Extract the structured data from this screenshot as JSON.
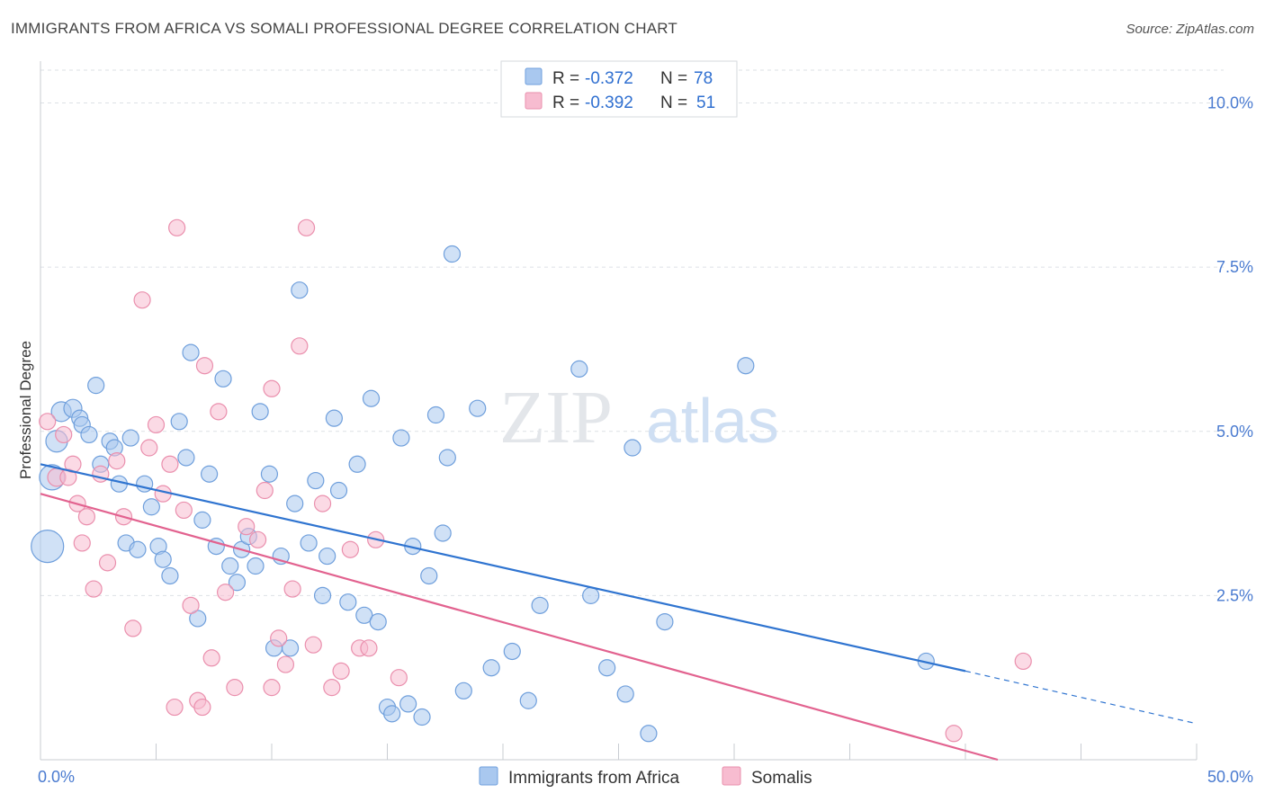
{
  "title": "IMMIGRANTS FROM AFRICA VS SOMALI PROFESSIONAL DEGREE CORRELATION CHART",
  "source": "Source: ZipAtlas.com",
  "watermark": {
    "zip": "ZIP",
    "atlas": "atlas"
  },
  "colors": {
    "blue_fill": "#a9c8ef",
    "blue_stroke": "#6f9fdc",
    "blue_line": "#2f74d0",
    "pink_fill": "#f7bcd0",
    "pink_stroke": "#ea8fad",
    "pink_line": "#e2628f",
    "grid": "#dde1e6",
    "axis_text": "#4a7bd0"
  },
  "legend": {
    "rows": [
      {
        "r_label": "R =",
        "r_value": "-0.372",
        "n_label": "N =",
        "n_value": "78",
        "color": "#a9c8ef"
      },
      {
        "r_label": "R =",
        "r_value": "-0.392",
        "n_label": "N =",
        "n_value": "51",
        "color": "#f7bcd0"
      }
    ]
  },
  "chart_data": {
    "type": "scatter",
    "xlabel": "",
    "ylabel": "Professional Degree",
    "xlim": [
      0,
      50
    ],
    "ylim": [
      0,
      10.5
    ],
    "x_tick_labels": [
      {
        "value": 0,
        "label": "0.0%"
      },
      {
        "value": 50,
        "label": "50.0%"
      }
    ],
    "y_tick_labels": [
      {
        "value": 2.5,
        "label": "2.5%"
      },
      {
        "value": 5.0,
        "label": "5.0%"
      },
      {
        "value": 7.5,
        "label": "7.5%"
      },
      {
        "value": 10.0,
        "label": "10.0%"
      }
    ],
    "grid": "horizontal-dashed",
    "legend_position": "top-center",
    "series": [
      {
        "name": "Immigrants from Africa",
        "color": "#a9c8ef",
        "trend": {
          "x0": 0,
          "y0": 4.5,
          "x1": 40,
          "y1": 1.35,
          "dashed_to": 50,
          "dashed_y": 0.55
        },
        "points": [
          [
            0.3,
            3.25,
            18
          ],
          [
            0.5,
            4.3,
            14
          ],
          [
            0.7,
            4.85,
            12
          ],
          [
            0.9,
            5.3,
            11
          ],
          [
            1.4,
            5.35,
            10
          ],
          [
            1.7,
            5.2,
            9
          ],
          [
            1.8,
            5.1,
            9
          ],
          [
            2.1,
            4.95,
            9
          ],
          [
            2.4,
            5.7,
            9
          ],
          [
            2.6,
            4.5,
            9
          ],
          [
            3.0,
            4.85,
            9
          ],
          [
            3.2,
            4.75,
            9
          ],
          [
            3.4,
            4.2,
            9
          ],
          [
            3.7,
            3.3,
            9
          ],
          [
            3.9,
            4.9,
            9
          ],
          [
            4.2,
            3.2,
            9
          ],
          [
            4.5,
            4.2,
            9
          ],
          [
            4.8,
            3.85,
            9
          ],
          [
            5.1,
            3.25,
            9
          ],
          [
            5.3,
            3.05,
            9
          ],
          [
            5.6,
            2.8,
            9
          ],
          [
            6.0,
            5.15,
            9
          ],
          [
            6.3,
            4.6,
            9
          ],
          [
            6.5,
            6.2,
            9
          ],
          [
            6.8,
            2.15,
            9
          ],
          [
            7.0,
            3.65,
            9
          ],
          [
            7.3,
            4.35,
            9
          ],
          [
            7.6,
            3.25,
            9
          ],
          [
            7.9,
            5.8,
            9
          ],
          [
            8.2,
            2.95,
            9
          ],
          [
            8.5,
            2.7,
            9
          ],
          [
            8.7,
            3.2,
            9
          ],
          [
            9.0,
            3.4,
            9
          ],
          [
            9.3,
            2.95,
            9
          ],
          [
            9.5,
            5.3,
            9
          ],
          [
            9.9,
            4.35,
            9
          ],
          [
            10.1,
            1.7,
            9
          ],
          [
            10.4,
            3.1,
            9
          ],
          [
            10.8,
            1.7,
            9
          ],
          [
            11.0,
            3.9,
            9
          ],
          [
            11.2,
            7.15,
            9
          ],
          [
            11.6,
            3.3,
            9
          ],
          [
            11.9,
            4.25,
            9
          ],
          [
            12.2,
            2.5,
            9
          ],
          [
            12.4,
            3.1,
            9
          ],
          [
            12.7,
            5.2,
            9
          ],
          [
            12.9,
            4.1,
            9
          ],
          [
            13.3,
            2.4,
            9
          ],
          [
            13.7,
            4.5,
            9
          ],
          [
            14.0,
            2.2,
            9
          ],
          [
            14.3,
            5.5,
            9
          ],
          [
            14.6,
            2.1,
            9
          ],
          [
            15.0,
            0.8,
            9
          ],
          [
            15.2,
            0.7,
            9
          ],
          [
            15.6,
            4.9,
            9
          ],
          [
            15.9,
            0.85,
            9
          ],
          [
            16.1,
            3.25,
            9
          ],
          [
            16.5,
            0.65,
            9
          ],
          [
            16.8,
            2.8,
            9
          ],
          [
            17.1,
            5.25,
            9
          ],
          [
            17.4,
            3.45,
            9
          ],
          [
            17.6,
            4.6,
            9
          ],
          [
            17.8,
            7.7,
            9
          ],
          [
            18.3,
            1.05,
            9
          ],
          [
            18.9,
            5.35,
            9
          ],
          [
            19.5,
            1.4,
            9
          ],
          [
            20.4,
            1.65,
            9
          ],
          [
            21.1,
            0.9,
            9
          ],
          [
            21.6,
            2.35,
            9
          ],
          [
            23.3,
            5.95,
            9
          ],
          [
            23.8,
            2.5,
            9
          ],
          [
            24.5,
            1.4,
            9
          ],
          [
            25.3,
            1.0,
            9
          ],
          [
            25.6,
            4.75,
            9
          ],
          [
            26.3,
            0.4,
            9
          ],
          [
            27.0,
            2.1,
            9
          ],
          [
            30.5,
            6.0,
            9
          ],
          [
            38.3,
            1.5,
            9
          ]
        ]
      },
      {
        "name": "Somalis",
        "color": "#f7bcd0",
        "trend": {
          "x0": 0,
          "y0": 4.05,
          "x1": 41.4,
          "y1": 0.0
        },
        "points": [
          [
            0.3,
            5.15,
            9
          ],
          [
            0.7,
            4.3,
            10
          ],
          [
            1.0,
            4.95,
            9
          ],
          [
            1.2,
            4.3,
            9
          ],
          [
            1.4,
            4.5,
            9
          ],
          [
            1.6,
            3.9,
            9
          ],
          [
            1.8,
            3.3,
            9
          ],
          [
            2.0,
            3.7,
            9
          ],
          [
            2.3,
            2.6,
            9
          ],
          [
            2.6,
            4.35,
            9
          ],
          [
            2.9,
            3.0,
            9
          ],
          [
            3.3,
            4.55,
            9
          ],
          [
            3.6,
            3.7,
            9
          ],
          [
            4.0,
            2.0,
            9
          ],
          [
            4.4,
            7.0,
            9
          ],
          [
            4.7,
            4.75,
            9
          ],
          [
            5.0,
            5.1,
            9
          ],
          [
            5.3,
            4.05,
            9
          ],
          [
            5.6,
            4.5,
            9
          ],
          [
            5.9,
            8.1,
            9
          ],
          [
            6.2,
            3.8,
            9
          ],
          [
            6.5,
            2.35,
            9
          ],
          [
            6.8,
            0.9,
            9
          ],
          [
            7.1,
            6.0,
            9
          ],
          [
            7.4,
            1.55,
            9
          ],
          [
            7.7,
            5.3,
            9
          ],
          [
            8.0,
            2.55,
            9
          ],
          [
            8.4,
            1.1,
            9
          ],
          [
            8.9,
            3.55,
            9
          ],
          [
            9.4,
            3.35,
            9
          ],
          [
            9.7,
            4.1,
            9
          ],
          [
            10.0,
            5.65,
            9
          ],
          [
            10.3,
            1.85,
            9
          ],
          [
            10.6,
            1.45,
            9
          ],
          [
            10.9,
            2.6,
            9
          ],
          [
            11.2,
            6.3,
            9
          ],
          [
            11.5,
            8.1,
            9
          ],
          [
            11.8,
            1.75,
            9
          ],
          [
            12.2,
            3.9,
            9
          ],
          [
            12.6,
            1.1,
            9
          ],
          [
            13.0,
            1.35,
            9
          ],
          [
            13.4,
            3.2,
            9
          ],
          [
            13.8,
            1.7,
            9
          ],
          [
            14.2,
            1.7,
            9
          ],
          [
            14.5,
            3.35,
            9
          ],
          [
            15.5,
            1.25,
            9
          ],
          [
            5.8,
            0.8,
            9
          ],
          [
            7.0,
            0.8,
            9
          ],
          [
            10.0,
            1.1,
            9
          ],
          [
            39.5,
            0.4,
            9
          ],
          [
            42.5,
            1.5,
            9
          ]
        ]
      }
    ]
  },
  "bottom_legend": {
    "items": [
      {
        "label": "Immigrants from Africa",
        "color": "#a9c8ef"
      },
      {
        "label": "Somalis",
        "color": "#f7bcd0"
      }
    ]
  }
}
